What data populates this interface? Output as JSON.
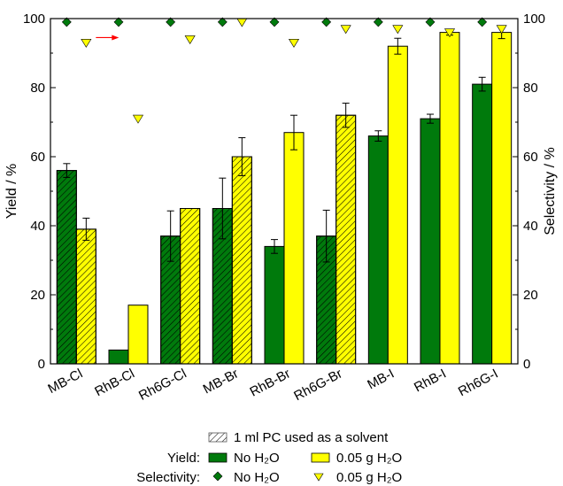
{
  "chart_data": {
    "type": "bar",
    "categories": [
      "MB-Cl",
      "RhB-Cl",
      "Rh6G-Cl",
      "MB-Br",
      "RhB-Br",
      "Rh6G-Br",
      "MB-I",
      "RhB-I",
      "Rh6G-I"
    ],
    "ylabel": "Yield / %",
    "y2label": "Selectivity / %",
    "ylim": [
      0,
      100
    ],
    "y2lim": [
      0,
      100
    ],
    "yticks": [
      0,
      20,
      40,
      60,
      80,
      100
    ],
    "grid": false,
    "legend_position": "bottom",
    "hatched_categories": [
      "MB-Cl",
      "Rh6G-Cl",
      "MB-Br",
      "Rh6G-Br"
    ],
    "series": [
      {
        "name": "No H2O",
        "kind": "bar",
        "axis": "yield",
        "color": "#007a0c",
        "values": [
          56,
          4,
          37,
          45,
          34,
          37,
          66,
          71,
          81
        ],
        "errors": [
          2,
          0,
          7.3,
          8.8,
          2,
          7.5,
          1.5,
          1.3,
          2
        ]
      },
      {
        "name": "0.05 g H2O",
        "kind": "bar",
        "axis": "yield",
        "color": "#ffff00",
        "values": [
          39,
          17,
          45,
          60,
          67,
          72,
          92,
          96,
          96
        ],
        "errors": [
          3.2,
          0,
          0,
          5.5,
          5,
          3.5,
          2.3,
          0.8,
          1.8
        ]
      },
      {
        "name": "No H2O",
        "kind": "diamond",
        "axis": "selectivity",
        "color": "#007a0c",
        "values": [
          99,
          99,
          99,
          99,
          99,
          99,
          99,
          99,
          99
        ]
      },
      {
        "name": "0.05 g H2O",
        "kind": "triangle",
        "axis": "selectivity",
        "color": "#ffff00",
        "values": [
          93,
          71,
          94,
          99,
          93,
          97,
          97,
          96,
          97
        ]
      }
    ],
    "annotation": {
      "type": "arrow",
      "color": "#ff0000",
      "at_category": 0,
      "y": 94.5,
      "points_to": "right-axis"
    },
    "legend": {
      "hatch_label": "1 ml PC used as a solvent",
      "yield_label": "Yield:",
      "selectivity_label": "Selectivity:",
      "no_water_label": "No H₂O",
      "water_label": "0.05 g H₂O"
    }
  }
}
